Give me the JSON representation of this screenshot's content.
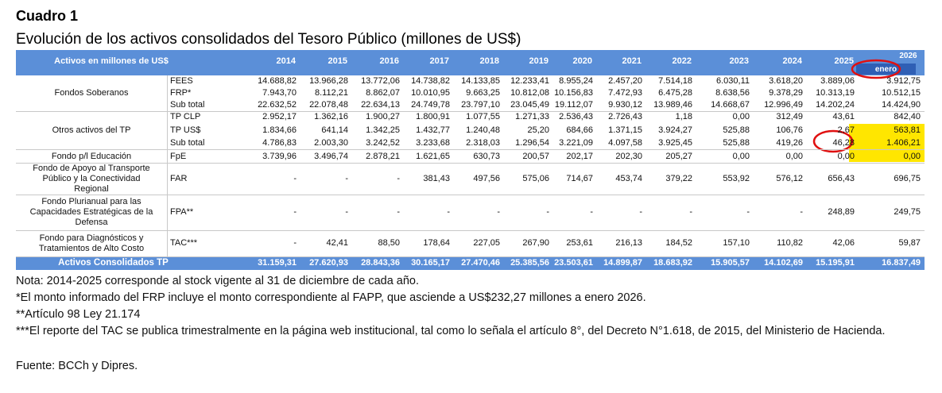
{
  "header": {
    "title": "Cuadro 1",
    "subtitle": "Evolución de los activos consolidados del Tesoro Público (millones de US$)"
  },
  "table": {
    "columns": [
      "Activos en millones de US$",
      "2014",
      "2015",
      "2016",
      "2017",
      "2018",
      "2019",
      "2020",
      "2021",
      "2022",
      "2023",
      "2024",
      "2025",
      "2026"
    ],
    "last_column_note": "enero",
    "groups": [
      {
        "label": [
          "Fondos Soberanos"
        ],
        "rows": [
          {
            "label": "FEES",
            "values": [
              "14.688,82",
              "13.966,28",
              "13.772,06",
              "14.738,82",
              "14.133,85",
              "12.233,41",
              "8.955,24",
              "2.457,20",
              "7.514,18",
              "6.030,11",
              "3.618,20",
              "3.889,06",
              "3.912,75"
            ]
          },
          {
            "label": "FRP*",
            "values": [
              "7.943,70",
              "8.112,21",
              "8.862,07",
              "10.010,95",
              "9.663,25",
              "10.812,08",
              "10.156,83",
              "7.472,93",
              "6.475,28",
              "8.638,56",
              "9.378,29",
              "10.313,19",
              "10.512,15"
            ]
          },
          {
            "label": "Sub total",
            "values": [
              "22.632,52",
              "22.078,48",
              "22.634,13",
              "24.749,78",
              "23.797,10",
              "23.045,49",
              "19.112,07",
              "9.930,12",
              "13.989,46",
              "14.668,67",
              "12.996,49",
              "14.202,24",
              "14.424,90"
            ]
          }
        ]
      },
      {
        "label": [
          "Otros activos del TP"
        ],
        "rows": [
          {
            "label": "TP CLP",
            "values": [
              "2.952,17",
              "1.362,16",
              "1.900,27",
              "1.800,91",
              "1.077,55",
              "1.271,33",
              "2.536,43",
              "2.726,43",
              "1,18",
              "0,00",
              "312,49",
              "43,61",
              "842,40"
            ]
          },
          {
            "label": "TP US$",
            "values": [
              "1.834,66",
              "641,14",
              "1.342,25",
              "1.432,77",
              "1.240,48",
              "25,20",
              "684,66",
              "1.371,15",
              "3.924,27",
              "525,88",
              "106,76",
              "2,67",
              "563,81"
            ]
          },
          {
            "label": "Sub total",
            "values": [
              "4.786,83",
              "2.003,30",
              "3.242,52",
              "3.233,68",
              "2.318,03",
              "1.296,54",
              "3.221,09",
              "4.097,58",
              "3.925,45",
              "525,88",
              "419,26",
              "46,28",
              "1.406,21"
            ]
          }
        ]
      },
      {
        "label": [
          "Fondo p/l Educación"
        ],
        "rows": [
          {
            "label": "FpE",
            "values": [
              "3.739,96",
              "3.496,74",
              "2.878,21",
              "1.621,65",
              "630,73",
              "200,57",
              "202,17",
              "202,30",
              "205,27",
              "0,00",
              "0,00",
              "0,00",
              "0,00"
            ]
          }
        ]
      },
      {
        "label": [
          "Fondo de Apoyo al Transporte",
          "Público y la Conectividad",
          "Regional"
        ],
        "rows": [
          {
            "label": "FAR",
            "values": [
              "-",
              "-",
              "-",
              "381,43",
              "497,56",
              "575,06",
              "714,67",
              "453,74",
              "379,22",
              "553,92",
              "576,12",
              "656,43",
              "696,75"
            ]
          }
        ]
      },
      {
        "label": [
          "Fondo Plurianual para las",
          "Capacidades Estratégicas de la",
          "Defensa"
        ],
        "rows": [
          {
            "label": "FPA**",
            "values": [
              "-",
              "-",
              "-",
              "-",
              "-",
              "-",
              "-",
              "-",
              "-",
              "-",
              "-",
              "248,89",
              "249,75"
            ]
          }
        ]
      },
      {
        "label": [
          "Fondo para Diagnósticos y",
          "Tratamientos de Alto Costo"
        ],
        "rows": [
          {
            "label": "TAC***",
            "values": [
              "-",
              "42,41",
              "88,50",
              "178,64",
              "227,05",
              "267,90",
              "253,61",
              "216,13",
              "184,52",
              "157,10",
              "110,82",
              "42,06",
              "59,87"
            ]
          }
        ]
      }
    ],
    "total": {
      "label": "Activos Consolidados TP",
      "values": [
        "31.159,31",
        "27.620,93",
        "28.843,36",
        "30.165,17",
        "27.470,46",
        "25.385,56",
        "23.503,61",
        "14.899,87",
        "18.683,92",
        "15.905,57",
        "14.102,69",
        "15.195,91",
        "16.837,49"
      ]
    }
  },
  "notes": [
    "Nota: 2014-2025 corresponde al stock vigente al 31 de diciembre de cada año.",
    "*El monto informado del FRP incluye el monto correspondiente al FAPP, que asciende a US$232,27 millones a enero 2026.",
    "**Artículo 98 Ley 21.174",
    "***El reporte del TAC se publica trimestralmente en la página web institucional, tal como lo señala el artículo 8°, del Decreto N°1.618, de 2015, del Ministerio de Hacienda.",
    "Fuente: BCCh y Dipres."
  ]
}
